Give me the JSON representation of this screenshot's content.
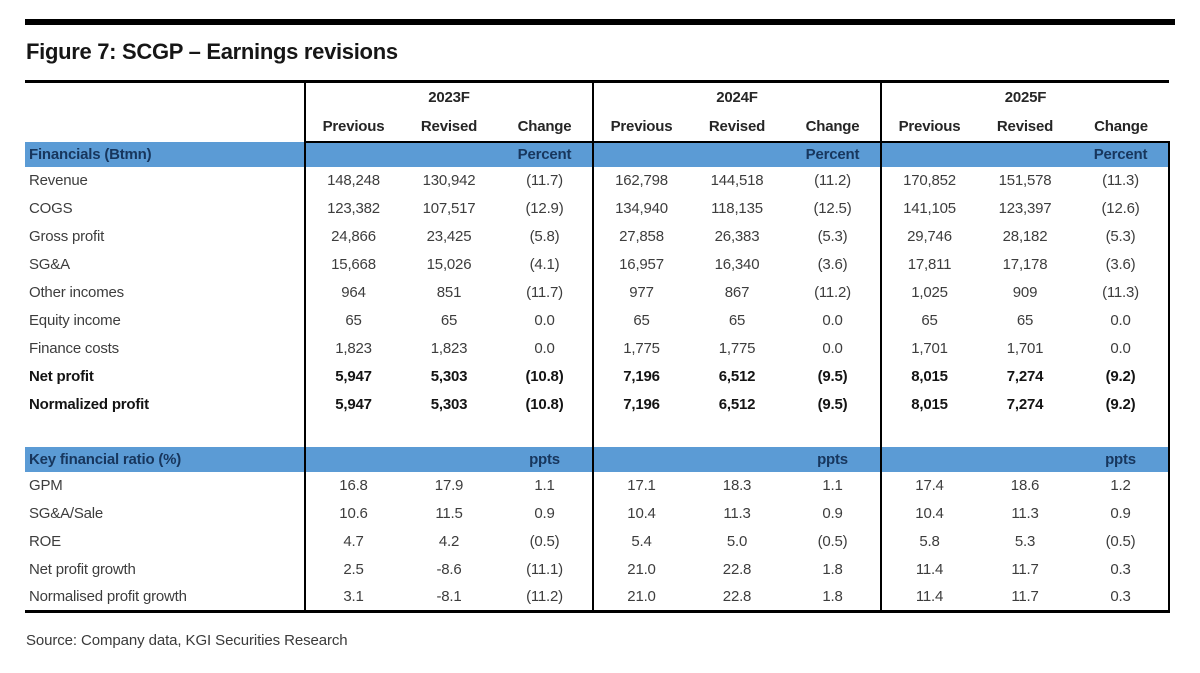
{
  "figure": {
    "title": "Figure 7: SCGP – Earnings revisions",
    "source": "Source: Company data, KGI Securities Research"
  },
  "colors": {
    "band_blue": "#5B9BD5",
    "band_text_navy": "#17365D",
    "rule_black": "#000000"
  },
  "table": {
    "year_headers": [
      "2023F",
      "2024F",
      "2025F"
    ],
    "sub_headers": [
      "Previous",
      "Revised",
      "Change"
    ],
    "sections": [
      {
        "label": "Financials (Btmn)",
        "unit": "Percent",
        "rows": [
          {
            "label": "Revenue",
            "bold": false,
            "values": [
              "148,248",
              "130,942",
              "(11.7)",
              "162,798",
              "144,518",
              "(11.2)",
              "170,852",
              "151,578",
              "(11.3)"
            ]
          },
          {
            "label": "COGS",
            "bold": false,
            "values": [
              "123,382",
              "107,517",
              "(12.9)",
              "134,940",
              "118,135",
              "(12.5)",
              "141,105",
              "123,397",
              "(12.6)"
            ]
          },
          {
            "label": "Gross profit",
            "bold": false,
            "values": [
              "24,866",
              "23,425",
              "(5.8)",
              "27,858",
              "26,383",
              "(5.3)",
              "29,746",
              "28,182",
              "(5.3)"
            ]
          },
          {
            "label": "SG&A",
            "bold": false,
            "values": [
              "15,668",
              "15,026",
              "(4.1)",
              "16,957",
              "16,340",
              "(3.6)",
              "17,811",
              "17,178",
              "(3.6)"
            ]
          },
          {
            "label": "Other incomes",
            "bold": false,
            "values": [
              "964",
              "851",
              "(11.7)",
              "977",
              "867",
              "(11.2)",
              "1,025",
              "909",
              "(11.3)"
            ]
          },
          {
            "label": "Equity income",
            "bold": false,
            "values": [
              "65",
              "65",
              "0.0",
              "65",
              "65",
              "0.0",
              "65",
              "65",
              "0.0"
            ]
          },
          {
            "label": "Finance costs",
            "bold": false,
            "values": [
              "1,823",
              "1,823",
              "0.0",
              "1,775",
              "1,775",
              "0.0",
              "1,701",
              "1,701",
              "0.0"
            ]
          },
          {
            "label": "Net profit",
            "bold": true,
            "values": [
              "5,947",
              "5,303",
              "(10.8)",
              "7,196",
              "6,512",
              "(9.5)",
              "8,015",
              "7,274",
              "(9.2)"
            ]
          },
          {
            "label": "Normalized profit",
            "bold": true,
            "values": [
              "5,947",
              "5,303",
              "(10.8)",
              "7,196",
              "6,512",
              "(9.5)",
              "8,015",
              "7,274",
              "(9.2)"
            ]
          }
        ]
      },
      {
        "label": "Key financial ratio (%)",
        "unit": "ppts",
        "rows": [
          {
            "label": "GPM",
            "bold": false,
            "values": [
              "16.8",
              "17.9",
              "1.1",
              "17.1",
              "18.3",
              "1.1",
              "17.4",
              "18.6",
              "1.2"
            ]
          },
          {
            "label": "SG&A/Sale",
            "bold": false,
            "values": [
              "10.6",
              "11.5",
              "0.9",
              "10.4",
              "11.3",
              "0.9",
              "10.4",
              "11.3",
              "0.9"
            ]
          },
          {
            "label": "ROE",
            "bold": false,
            "values": [
              "4.7",
              "4.2",
              "(0.5)",
              "5.4",
              "5.0",
              "(0.5)",
              "5.8",
              "5.3",
              "(0.5)"
            ]
          },
          {
            "label": "Net profit growth",
            "bold": false,
            "values": [
              "2.5",
              "-8.6",
              "(11.1)",
              "21.0",
              "22.8",
              "1.8",
              "11.4",
              "11.7",
              "0.3"
            ]
          },
          {
            "label": "Normalised profit growth",
            "bold": false,
            "values": [
              "3.1",
              "-8.1",
              "(11.2)",
              "21.0",
              "22.8",
              "1.8",
              "11.4",
              "11.7",
              "0.3"
            ]
          }
        ]
      }
    ]
  }
}
